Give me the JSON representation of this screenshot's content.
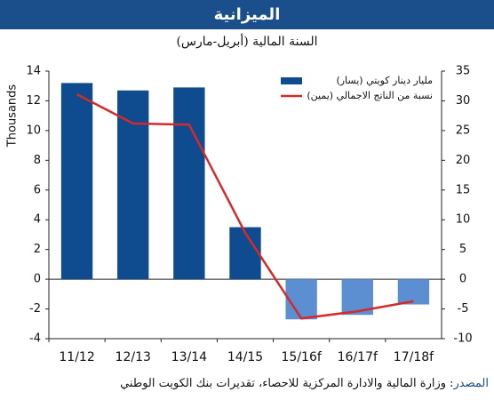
{
  "chart_data": {
    "type": "bar-line",
    "title": "الميزانية",
    "subtitle": "السنة المالية (أبريل-مارس)",
    "y_label": "Thousands",
    "categories": [
      "11/12",
      "12/13",
      "13/14",
      "14/15",
      "15/16f",
      "16/17f",
      "17/18f"
    ],
    "series": [
      {
        "name": "مليار دينار كويتي (يسار)",
        "type": "bar",
        "color": "#0f4c8f",
        "colors": [
          "#0f4c8f",
          "#0f4c8f",
          "#0f4c8f",
          "#0f4c8f",
          "#5b8fd1",
          "#5b8fd1",
          "#5b8fd1"
        ],
        "values": [
          13.2,
          12.7,
          12.9,
          3.5,
          -2.7,
          -2.4,
          -1.7
        ]
      },
      {
        "name": "نسبة من الناتج الاجمالي (يمين)",
        "type": "line",
        "axis": "y2",
        "color": "#d42a2a",
        "values": [
          31.1,
          26.2,
          26,
          7.8,
          -6.6,
          -5.4,
          -3.7
        ]
      }
    ],
    "ylim": [
      -4,
      14
    ],
    "yticks": [
      -4,
      -2,
      0,
      2,
      4,
      6,
      8,
      10,
      12,
      14
    ],
    "y2lim": [
      -10,
      35
    ],
    "y2ticks": [
      -10,
      -5,
      0,
      5,
      10,
      15,
      20,
      25,
      30,
      35
    ],
    "grid": false,
    "legend": "top-right",
    "source_label": "المصدر",
    "source_text": ": وزارة المالية والادارة المركزية للاحصاء، تقديرات بنك الكويت الوطني"
  }
}
